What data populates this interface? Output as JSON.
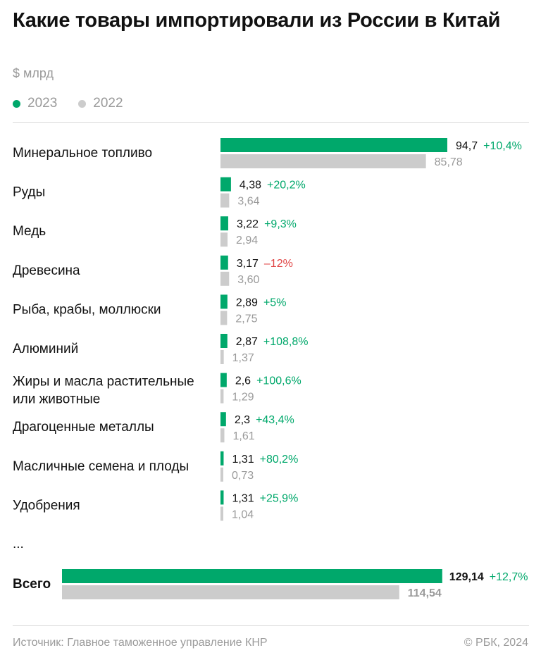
{
  "title": "Какие товары импортировали из России в Китай",
  "unit": "$ млрд",
  "legend": [
    {
      "label": "2023",
      "color": "#00a86b"
    },
    {
      "label": "2022",
      "color": "#cccccc"
    }
  ],
  "colors": {
    "current": "#00a86b",
    "previous": "#cccccc",
    "positive": "#00a86b",
    "negative": "#e04545",
    "text": "#111111",
    "muted": "#9a9a9a"
  },
  "chart_data": {
    "type": "bar",
    "orientation": "horizontal",
    "series_names": [
      "2023",
      "2022"
    ],
    "categories": [
      "Минеральное топливо",
      "Руды",
      "Медь",
      "Древесина",
      "Рыба, крабы, моллюски",
      "Алюминий",
      "Жиры и масла растительные или животные",
      "Драгоценные металлы",
      "Масличные семена и плоды",
      "Удобрения"
    ],
    "rows": [
      {
        "label": [
          "Минеральное топливо"
        ],
        "v2023": 94.7,
        "v2023_label": "94,7",
        "v2022": 85.78,
        "v2022_label": "85,78",
        "change": "+10,4%",
        "change_dir": "up"
      },
      {
        "label": [
          "Руды"
        ],
        "v2023": 4.38,
        "v2023_label": "4,38",
        "v2022": 3.64,
        "v2022_label": "3,64",
        "change": "+20,2%",
        "change_dir": "up"
      },
      {
        "label": [
          "Медь"
        ],
        "v2023": 3.22,
        "v2023_label": "3,22",
        "v2022": 2.94,
        "v2022_label": "2,94",
        "change": "+9,3%",
        "change_dir": "up"
      },
      {
        "label": [
          "Древесина"
        ],
        "v2023": 3.17,
        "v2023_label": "3,17",
        "v2022": 3.6,
        "v2022_label": "3,60",
        "change": "–12%",
        "change_dir": "down"
      },
      {
        "label": [
          "Рыба, крабы, моллюски"
        ],
        "v2023": 2.89,
        "v2023_label": "2,89",
        "v2022": 2.75,
        "v2022_label": "2,75",
        "change": "+5%",
        "change_dir": "up"
      },
      {
        "label": [
          "Алюминий"
        ],
        "v2023": 2.87,
        "v2023_label": "2,87",
        "v2022": 1.37,
        "v2022_label": "1,37",
        "change": "+108,8%",
        "change_dir": "up"
      },
      {
        "label": [
          "Жиры и масла растительные",
          "или животные"
        ],
        "v2023": 2.6,
        "v2023_label": "2,6",
        "v2022": 1.29,
        "v2022_label": "1,29",
        "change": "+100,6%",
        "change_dir": "up"
      },
      {
        "label": [
          "Драгоценные металлы"
        ],
        "v2023": 2.3,
        "v2023_label": "2,3",
        "v2022": 1.61,
        "v2022_label": "1,61",
        "change": "+43,4%",
        "change_dir": "up"
      },
      {
        "label": [
          "Масличные семена и плоды"
        ],
        "v2023": 1.31,
        "v2023_label": "1,31",
        "v2022": 0.73,
        "v2022_label": "0,73",
        "change": "+80,2%",
        "change_dir": "up"
      },
      {
        "label": [
          "Удобрения"
        ],
        "v2023": 1.31,
        "v2023_label": "1,31",
        "v2022": 1.04,
        "v2022_label": "1,04",
        "change": "+25,9%",
        "change_dir": "up"
      }
    ],
    "ellipsis": "...",
    "total": {
      "label": "Всего",
      "v2023": 129.14,
      "v2023_label": "129,14",
      "v2022": 114.54,
      "v2022_label": "114,54",
      "change": "+12,7%",
      "change_dir": "up"
    }
  },
  "footer": {
    "source": "Источник: Главное таможенное управление КНР",
    "copyright": "© РБК, 2024"
  }
}
